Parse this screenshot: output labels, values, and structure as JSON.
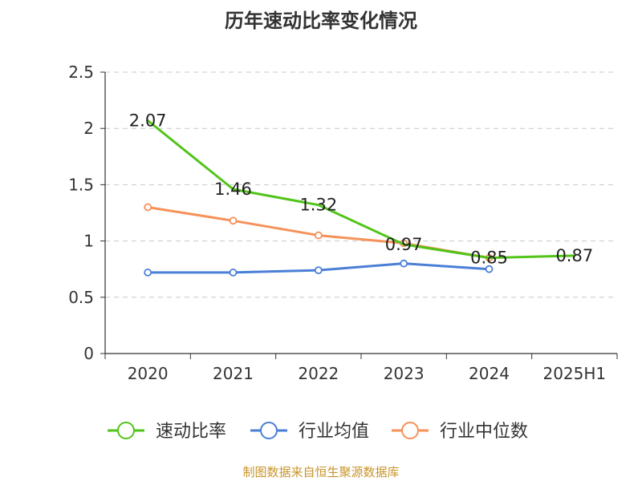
{
  "chart_data": {
    "type": "line",
    "title": "历年速动比率变化情况",
    "categories": [
      "2020",
      "2021",
      "2022",
      "2023",
      "2024",
      "2025H1"
    ],
    "ylim": [
      0,
      2.5
    ],
    "yticks": [
      0,
      0.5,
      1,
      1.5,
      2,
      2.5
    ],
    "ytick_labels": [
      "0",
      "0.5",
      "1",
      "1.5",
      "2",
      "2.5"
    ],
    "grid": true,
    "legend_position": "bottom",
    "series": [
      {
        "name": "速动比率",
        "color": "#52c41a",
        "values": [
          2.07,
          1.46,
          1.32,
          0.97,
          0.85,
          0.87
        ],
        "data_labels": [
          "2.07",
          "1.46",
          "1.32",
          "0.97",
          "0.85",
          "0.87"
        ]
      },
      {
        "name": "行业均值",
        "color": "#4a7fd6",
        "values": [
          0.72,
          0.72,
          0.74,
          0.8,
          0.75,
          null
        ]
      },
      {
        "name": "行业中位数",
        "color": "#f5925a",
        "values": [
          1.3,
          1.18,
          1.05,
          0.98,
          0.85,
          null
        ]
      }
    ]
  },
  "source_text": "制图数据来自恒生聚源数据库"
}
